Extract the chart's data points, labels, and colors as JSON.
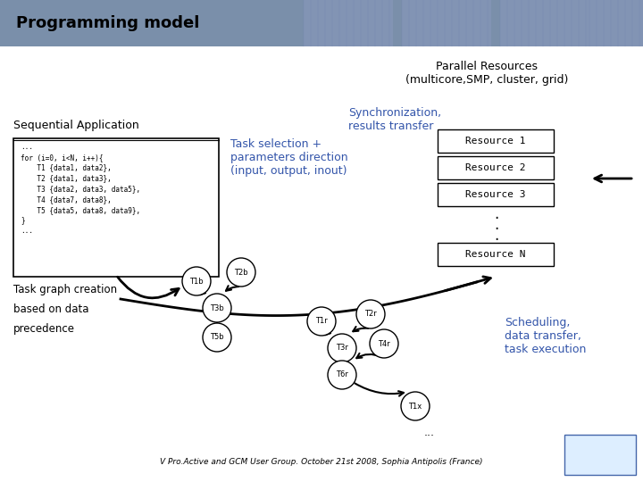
{
  "title": "Programming model",
  "title_bg": "#7a8faa",
  "bg_color": "#ffffff",
  "parallel_resources_text": "Parallel Resources\n(multicore,SMP, cluster, grid)",
  "sync_text": "Synchronization,\nresults transfer",
  "sync_color": "#3355aa",
  "task_selection_text": "Task selection +\nparameters direction\n(input, output, inout)",
  "task_selection_color": "#3355aa",
  "resource_boxes": [
    "Resource 1",
    "Resource 2",
    "Resource 3"
  ],
  "resource_n_text": "Resource N",
  "seq_app_title": "Sequential Application",
  "code_lines": [
    "...",
    "for (i=0, i<N, i++){",
    "    T1 {data1, data2},",
    "    T2 {data1, data3},",
    "    T3 {data2, data3, data5},",
    "    T4 {data7, data8},",
    "    T5 {data5, data8, data9},",
    "}",
    "..."
  ],
  "task_graph_text1": "Task graph creation",
  "task_graph_text2": "based on data",
  "task_graph_text3": "precedence",
  "scheduling_text": "Scheduling,\ndata transfer,\ntask execution",
  "scheduling_color": "#3355aa",
  "footer_text": "V Pro.Active and GCM User Group. October 21st 2008, Sophia Antipolis (France)",
  "node_color": "#ffffff",
  "node_edge_color": "#000000"
}
